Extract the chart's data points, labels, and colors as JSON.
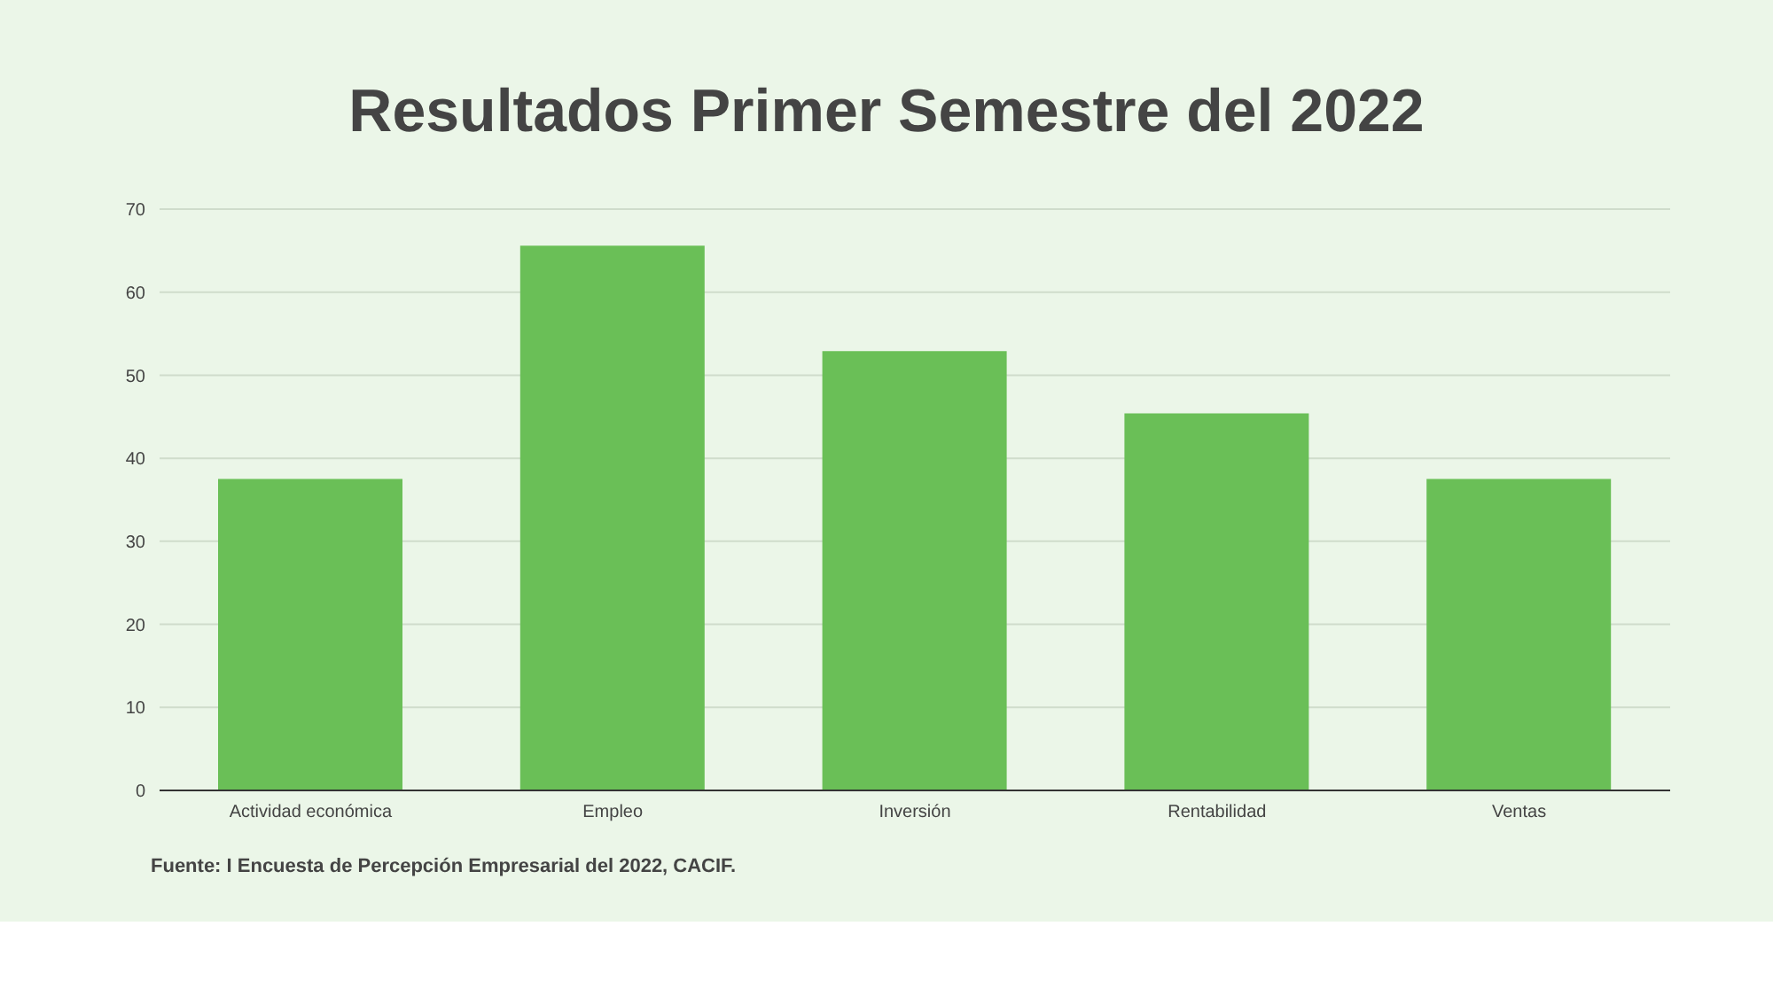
{
  "chart_data": {
    "type": "bar",
    "title": "Resultados Primer Semestre del 2022",
    "categories": [
      "Actividad económica",
      "Empleo",
      "Inversión",
      "Rentabilidad",
      "Ventas"
    ],
    "values": [
      37.5,
      65.6,
      52.9,
      45.4,
      37.5
    ],
    "color": "#6abf57",
    "ylim": [
      0,
      70
    ],
    "yticks": [
      0,
      10,
      20,
      30,
      40,
      50,
      60,
      70
    ],
    "grid": "y",
    "annotations": [
      "Fuente: I Encuesta de Percepción Empresarial del 2022, CACIF."
    ]
  }
}
